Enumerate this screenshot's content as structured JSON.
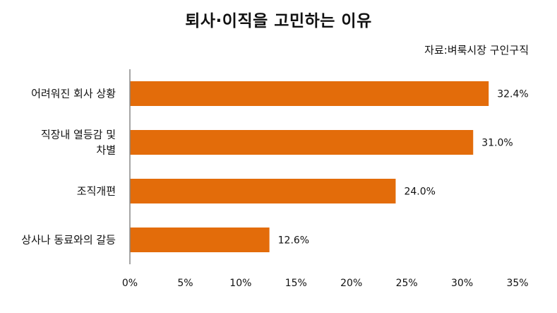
{
  "title": "퇴사·이직을 고민하는 이유",
  "source": "자료:벼룩시장 구인구직",
  "chart_data": {
    "type": "bar",
    "orientation": "horizontal",
    "categories": [
      "어려워진 회사 상황",
      "직장내 열등감 및 차별",
      "조직개편",
      "상사나 동료와의 갈등"
    ],
    "category_lines": [
      [
        "어려워진 회사 상황"
      ],
      [
        "직장내 열등감 및",
        "차별"
      ],
      [
        "조직개편"
      ],
      [
        "상사나 동료와의 갈등"
      ]
    ],
    "values": [
      32.4,
      31.0,
      24.0,
      12.6
    ],
    "value_labels": [
      "32.4%",
      "31.0%",
      "24.0%",
      "12.6%"
    ],
    "xlim": [
      0,
      35
    ],
    "xticks": [
      "0%",
      "5%",
      "10%",
      "15%",
      "20%",
      "25%",
      "30%",
      "35%"
    ],
    "bar_color": "#E36C0A",
    "grid": false
  }
}
